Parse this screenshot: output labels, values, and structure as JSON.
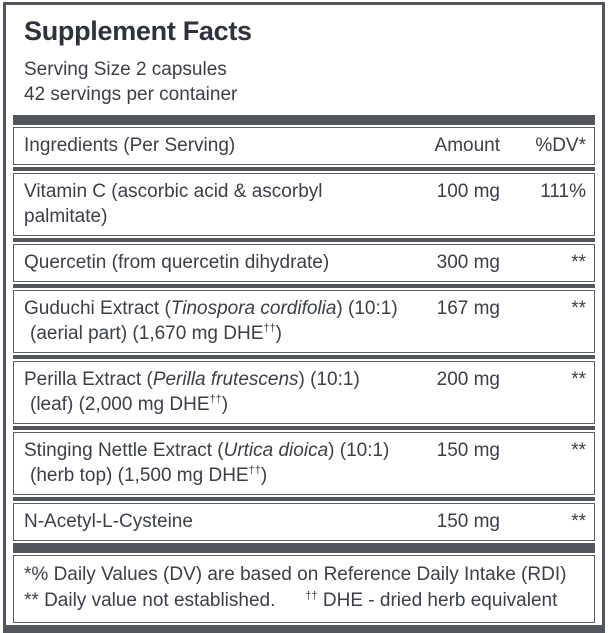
{
  "colors": {
    "frame": "#54565e",
    "text": "#3a3f48",
    "title": "#2d323c"
  },
  "panel": {
    "title": "Supplement Facts",
    "serving_size": "Serving Size 2 capsules",
    "servings_per_container": "42 servings per container"
  },
  "table": {
    "columns": {
      "ingredients": "Ingredients (Per Serving)",
      "amount": "Amount",
      "dv": "%DV*"
    },
    "rows": [
      {
        "line1": [
          {
            "text": "Vitamin C (ascorbic acid & ascorbyl palmitate)"
          }
        ],
        "amount": "100 mg",
        "dv": "111%"
      },
      {
        "line1": [
          {
            "text": "Quercetin (from quercetin dihydrate)"
          }
        ],
        "amount": "300 mg",
        "dv": "**"
      },
      {
        "line1": [
          {
            "text": "Guduchi Extract ("
          },
          {
            "text": "Tinospora cordifolia",
            "style": "italic"
          },
          {
            "text": ") (10:1)"
          }
        ],
        "line2": [
          {
            "text": "(aerial part) (1,670 mg DHE"
          },
          {
            "text": "††",
            "style": "sup"
          },
          {
            "text": ")"
          }
        ],
        "amount": "167 mg",
        "dv": "**"
      },
      {
        "line1": [
          {
            "text": "Perilla Extract ("
          },
          {
            "text": "Perilla frutescens",
            "style": "italic"
          },
          {
            "text": ") (10:1)"
          }
        ],
        "line2": [
          {
            "text": "(leaf) (2,000 mg DHE"
          },
          {
            "text": "††",
            "style": "sup"
          },
          {
            "text": ")"
          }
        ],
        "amount": "200 mg",
        "dv": "**"
      },
      {
        "line1": [
          {
            "text": "Stinging Nettle Extract ("
          },
          {
            "text": "Urtica dioica",
            "style": "italic"
          },
          {
            "text": ") (10:1)"
          }
        ],
        "line2": [
          {
            "text": "(herb top) (1,500 mg DHE"
          },
          {
            "text": "††",
            "style": "sup"
          },
          {
            "text": ")"
          }
        ],
        "amount": "150 mg",
        "dv": "**"
      },
      {
        "line1": [
          {
            "text": "N-Acetyl-L-Cysteine"
          }
        ],
        "amount": "150 mg",
        "dv": "**"
      }
    ]
  },
  "footnotes": {
    "line1": [
      {
        "text": "*% Daily Values (DV) are based on Reference Daily Intake (RDI)"
      }
    ],
    "line2": [
      {
        "text": "** Daily value not established."
      },
      {
        "text": "††",
        "style": "sup",
        "gap": true
      },
      {
        "text": " DHE - dried herb equivalent"
      }
    ]
  }
}
